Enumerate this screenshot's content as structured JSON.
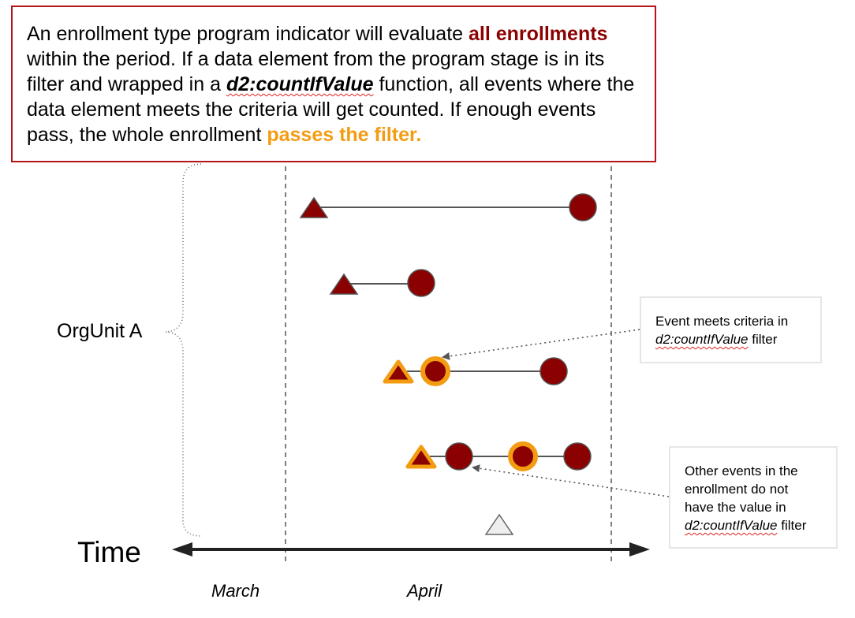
{
  "banner": {
    "t1": "An enrollment type program indicator will evaluate ",
    "t2": "all enrollments",
    "t3": " within the period. If a data element from the program stage is in its filter and wrapped in a ",
    "t4": "d2:countIfValue",
    "t5": " function, all events where the data element meets the criteria will get counted. If enough events pass, the whole enrollment ",
    "t6": "passes the filter."
  },
  "callout_meets": {
    "line1": "Event meets criteria in",
    "fn": "d2:countIfValue",
    "suffix": " filter"
  },
  "callout_other": {
    "line1": "Other events in the",
    "line2": "enrollment do not",
    "line3": "have the value in",
    "fn": "d2:countIfValue",
    "suffix": " filter"
  },
  "labels": {
    "orgunit": "OrgUnit A",
    "time": "Time",
    "march": "March",
    "april": "April"
  },
  "colors": {
    "event_fill": "#8b0000",
    "highlight_ring": "#f39c12",
    "banner_border": "#b3151b",
    "axis": "#222222"
  }
}
